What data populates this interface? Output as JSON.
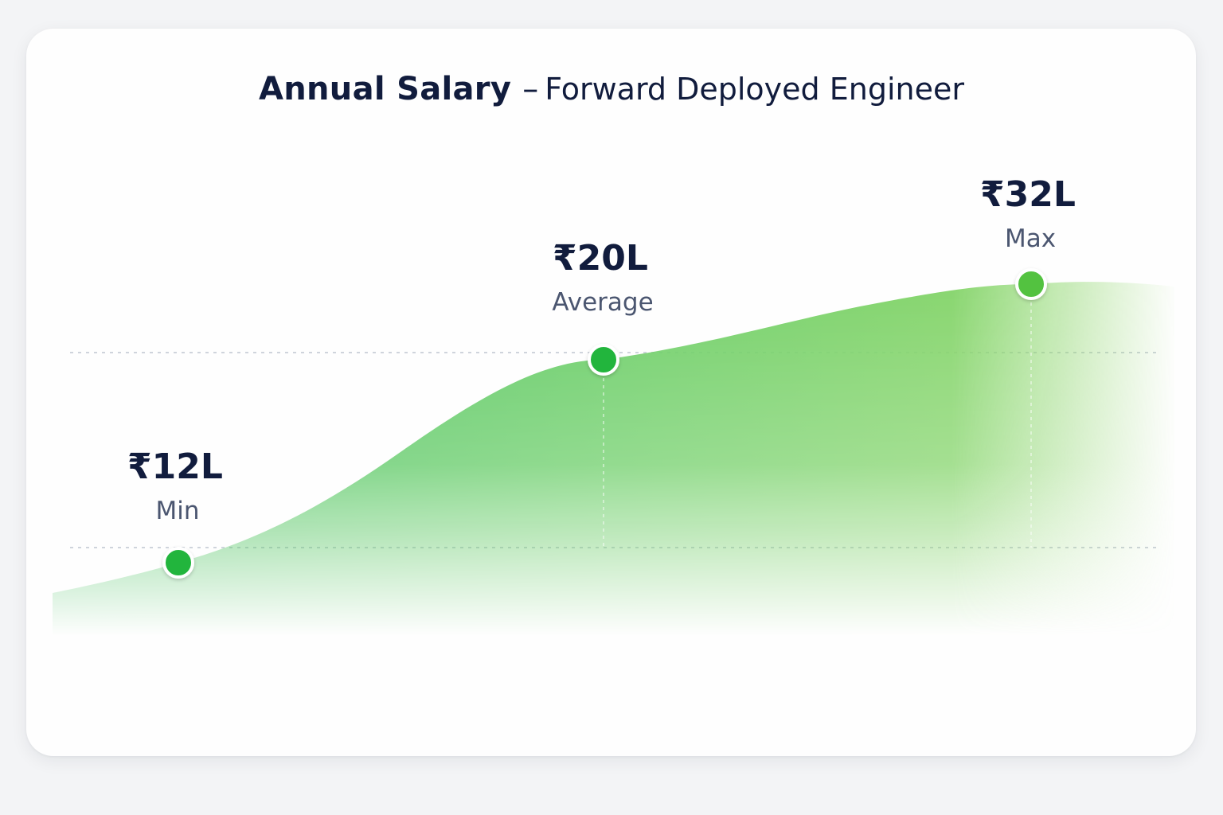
{
  "chart_data": {
    "type": "area",
    "title": "Annual Salary",
    "title_separator": "–",
    "subtitle": "Forward Deployed Engineer",
    "currency_symbol": "₹",
    "unit_suffix": "L",
    "points": [
      {
        "label": "Min",
        "value": 12,
        "display": "₹12L"
      },
      {
        "label": "Average",
        "value": 20,
        "display": "₹20L"
      },
      {
        "label": "Max",
        "value": 32,
        "display": "₹32L"
      }
    ],
    "grid": true,
    "legend": "none"
  },
  "colors": {
    "area_top": "#8fd66a",
    "area_left": "#3fbf5c",
    "marker_fill": "#22b53c",
    "marker_stroke": "#ffffff",
    "text_dark": "#111c3d",
    "text_muted": "#4b5670"
  }
}
